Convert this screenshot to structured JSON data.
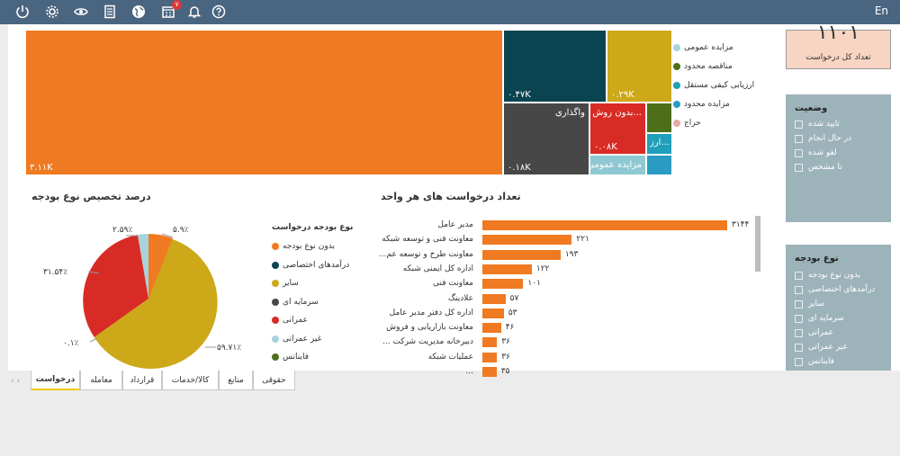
{
  "topbar": {
    "icons": [
      "power-icon",
      "gear-icon",
      "eye-icon",
      "document-icon",
      "globe-icon",
      "calendar-icon",
      "bell-icon",
      "help-icon"
    ],
    "badge": "۷",
    "lang": "En"
  },
  "treemap": {
    "tiles": [
      {
        "value": "۳.۱۱K",
        "label": "",
        "color": "#f07a21"
      },
      {
        "value": "۰.۴۷K",
        "label": "",
        "color": "#0b4451"
      },
      {
        "value": "۰.۲۹K",
        "label": "",
        "color": "#cda818"
      },
      {
        "value": "۰.۱۸K",
        "label": "واگذاری",
        "color": "#474747"
      },
      {
        "value": "۰.۰۸K",
        "label": "بدون روش ا...",
        "color": "#d92b25"
      },
      {
        "value": "",
        "label": "",
        "color": "#4e6f1a"
      },
      {
        "value": "",
        "label": "ارز...",
        "color": "#1f9fb9"
      },
      {
        "value": "",
        "label": "مزایده عمومی",
        "color": "#8ec8d3"
      },
      {
        "value": "",
        "label": "",
        "color": "#2a9cc3"
      }
    ],
    "legend": [
      {
        "label": "مزایده عمومی",
        "color": "#a7d3dd"
      },
      {
        "label": "مناقصه محدود",
        "color": "#4e6f1a"
      },
      {
        "label": "ارزیابی کیفی مستقل",
        "color": "#1f9fb9"
      },
      {
        "label": "مزایده محدود",
        "color": "#2a9cc3"
      },
      {
        "label": "حراج",
        "color": "#e8a9a6"
      }
    ]
  },
  "pie": {
    "title": "درصد تخصیص نوع بودجه",
    "legend_title": "نوع بودجه درخواست",
    "legend": [
      {
        "label": "بدون نوع بودجه",
        "color": "#f07a21"
      },
      {
        "label": "درآمدهای اختصاصی",
        "color": "#0b4451"
      },
      {
        "label": "سایر",
        "color": "#cda818"
      },
      {
        "label": "سرمایه ای",
        "color": "#474747"
      },
      {
        "label": "عمرانی",
        "color": "#d92b25"
      },
      {
        "label": "غیر عمرانی",
        "color": "#a7d3dd"
      },
      {
        "label": "فاینانس",
        "color": "#4e6f1a"
      }
    ],
    "labels": {
      "l1": "۲.۵۹٪",
      "l2": "۵.۹٪",
      "l3": "۳۱.۵۴٪",
      "l4": "۰.۱٪",
      "l5": "۵۹.۷۱٪"
    }
  },
  "bars": {
    "title": "تعداد درخواست های هر واحد",
    "rows": [
      {
        "label": "مدیر عامل",
        "value": "۳۱۴۴"
      },
      {
        "label": "معاونت فنی و توسعه شبکه",
        "value": "۲۲۱"
      },
      {
        "label": "...معاونت طرح و توسعه عم",
        "value": "۱۹۳"
      },
      {
        "label": "اداره کل ایمنی شبکه",
        "value": "۱۲۲"
      },
      {
        "label": "معاونت فنی",
        "value": "۱۰۱"
      },
      {
        "label": "علادینگ",
        "value": "۵۷"
      },
      {
        "label": "اداره کل دفتر مدیر عامل",
        "value": "۵۳"
      },
      {
        "label": "معاونت بازاریابی و فروش",
        "value": "۴۶"
      },
      {
        "label": "... دبیرخانه مدیریت شرکت",
        "value": "۳۶"
      },
      {
        "label": "عملیات شبکه",
        "value": "۳۶"
      },
      {
        "label": "...",
        "value": "۳۵"
      }
    ]
  },
  "card": {
    "number": "۱۱۰۱",
    "label": "تعداد کل درخواست"
  },
  "status_filter": {
    "title": "وضعیت",
    "options": [
      "تایید شده",
      "در حال انجام",
      "لغو شده",
      "نا مشخص"
    ]
  },
  "budget_filter": {
    "title": "نوع بودجه",
    "options": [
      "بدون نوع بودجه",
      "درآمدهای اختصاصی",
      "سایر",
      "سرمایه ای",
      "عمرانی",
      "غیر عمرانی",
      "فاینانس"
    ]
  },
  "tabs": [
    "درخواست",
    "معامله",
    "قرارداد",
    "کالا/خدمات",
    "منابع",
    "حقوقی"
  ]
}
